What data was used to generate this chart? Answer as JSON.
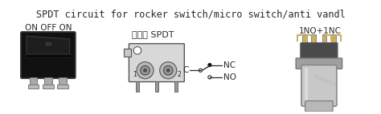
{
  "title": "SPDT circuit for rocker switch/micro switch/anti vandl",
  "label_left": "ON OFF ON",
  "label_right": "1NO+1NC",
  "label_center": "轉換式 SPDT",
  "nc_label": "NC",
  "no_label": "NO",
  "c_label": "C",
  "bg_color": "#ffffff",
  "title_fontsize": 8.5,
  "label_fontsize": 7.5,
  "schematic_fontsize": 7.5,
  "text_color": "#2a2a2a",
  "line_color": "#2a2a2a"
}
